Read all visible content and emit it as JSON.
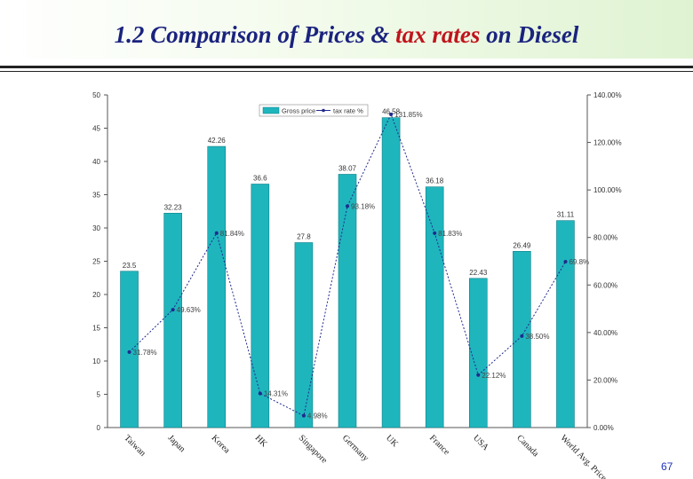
{
  "slide": {
    "title_part1": "1.2 Comparison of Prices & ",
    "title_highlight": "tax rates",
    "title_part2": " on Diesel",
    "page_number": "67"
  },
  "colors": {
    "bar": "#1fb5bd",
    "bar_edge": "#0e7f86",
    "line": "#1f2a8c",
    "title": "#1a237e",
    "title_highlight": "#c0141c"
  },
  "chart_data": {
    "type": "bar",
    "categories": [
      "Taiwan",
      "Japan",
      "Korea",
      "HK",
      "Singapore",
      "Germany",
      "UK",
      "France",
      "USA",
      "Canada",
      "World Avg. Price"
    ],
    "series": [
      {
        "name": "Gross price",
        "type": "bar",
        "axis": "left",
        "values": [
          23.5,
          32.23,
          42.26,
          36.6,
          27.8,
          38.07,
          46.58,
          36.18,
          22.43,
          26.49,
          31.11
        ],
        "labels": [
          "23.5",
          "32.23",
          "42.26",
          "36.6",
          "27.8",
          "38.07",
          "46.58",
          "36.18",
          "22.43",
          "26.49",
          "31.11"
        ]
      },
      {
        "name": "tax rate %",
        "type": "line",
        "axis": "right",
        "values": [
          31.78,
          49.63,
          81.84,
          14.31,
          4.98,
          93.18,
          131.85,
          81.83,
          22.12,
          38.5,
          69.8
        ],
        "labels": [
          "31.78%",
          "49.63%",
          "81.84%",
          "14.31%",
          "4.98%",
          "93.18%",
          "131.85%",
          "81.83%",
          "22.12%",
          "38.50%",
          "69.8%"
        ]
      }
    ],
    "y_left": {
      "min": 0,
      "max": 50,
      "ticks": [
        "0",
        "5",
        "10",
        "15",
        "20",
        "25",
        "30",
        "35",
        "40",
        "45",
        "50"
      ]
    },
    "y_right": {
      "min": 0,
      "max": 140,
      "ticks": [
        "0.00%",
        "20.00%",
        "40.00%",
        "60.00%",
        "80.00%",
        "100.00%",
        "120.00%",
        "140.00%"
      ]
    },
    "grid": false,
    "legend": "top-center"
  }
}
